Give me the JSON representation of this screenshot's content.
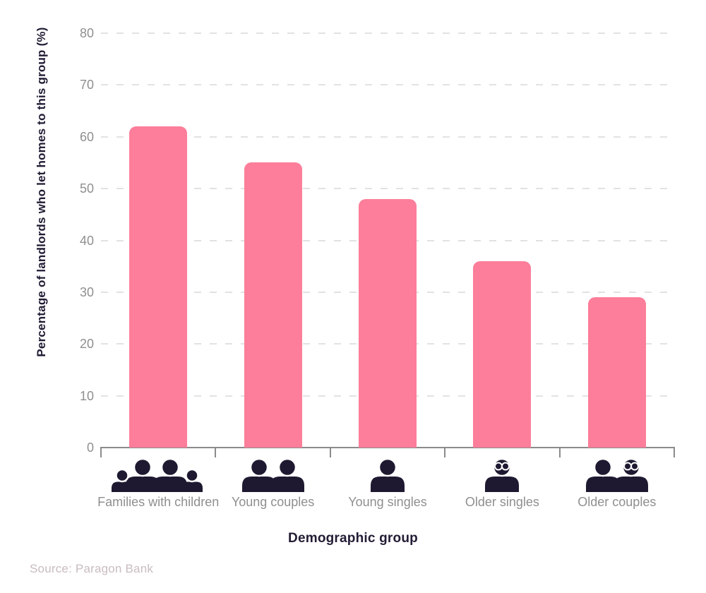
{
  "chart_data": {
    "type": "bar",
    "categories": [
      "Families with children",
      "Young couples",
      "Young singles",
      "Older singles",
      "Older couples"
    ],
    "values": [
      62,
      55,
      48,
      36,
      29
    ],
    "category_icons": [
      "family-with-children-icon",
      "young-couple-icon",
      "young-single-icon",
      "older-single-icon",
      "older-couple-icon"
    ],
    "xlabel": "Demographic group",
    "ylabel": "Percentage of landlords who let homes to this group (%)",
    "ylim": [
      0,
      80
    ],
    "y_ticks": [
      0,
      10,
      20,
      30,
      40,
      50,
      60,
      70,
      80
    ],
    "grid": "horizontal-dashed",
    "legend": "none",
    "source": "Source: Paragon Bank"
  },
  "colors": {
    "background": "#FFFFFF",
    "bar": "#FC7E9A",
    "icon": "#1E1930",
    "title_text": "#221C34",
    "tick_label": "#8F8F8F",
    "category_label": "#8F8F8F",
    "gridline": "#E4E1E5",
    "axis": "#8B8B8B",
    "source_text": "#C9BCC1"
  }
}
